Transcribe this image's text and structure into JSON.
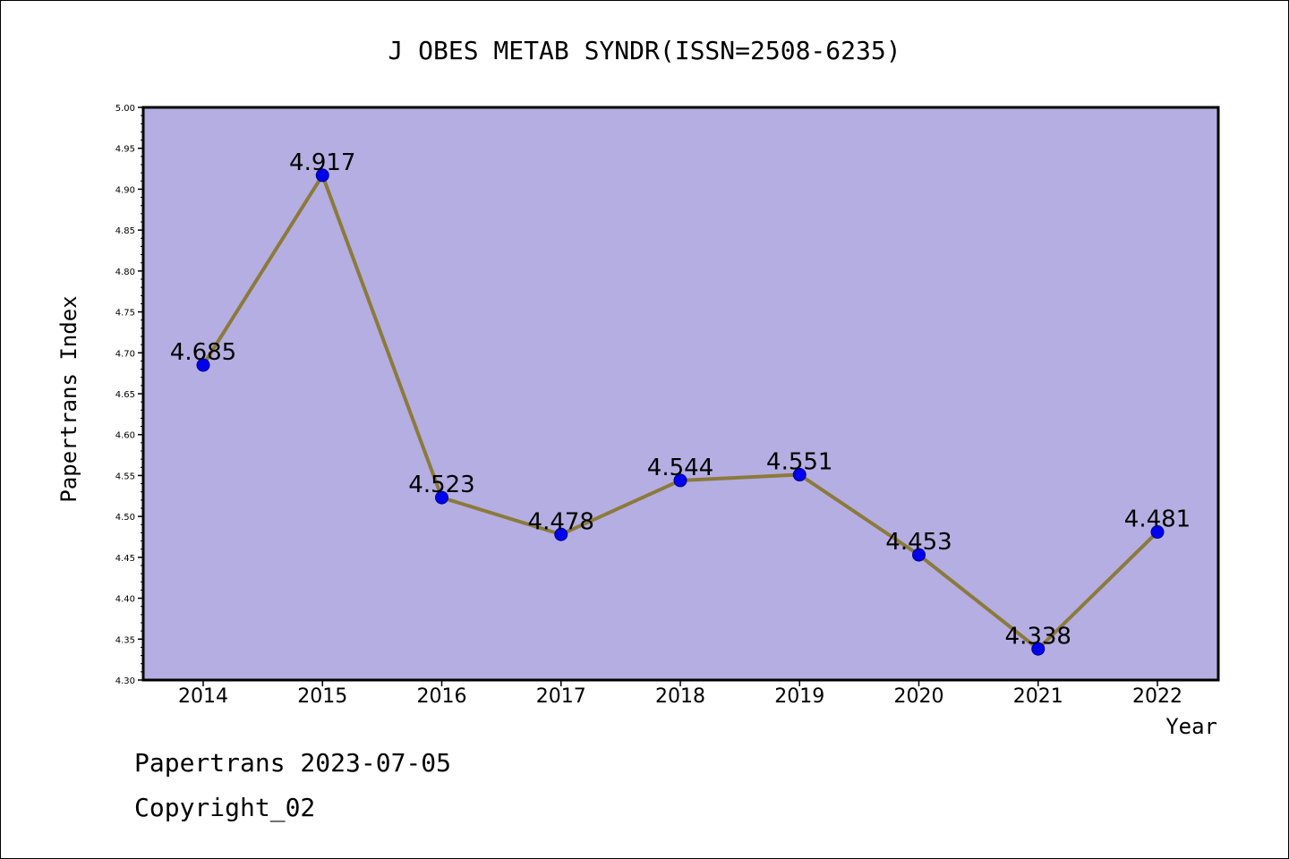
{
  "chart_data": {
    "type": "line",
    "title": "J OBES METAB SYNDR(ISSN=2508-6235)",
    "xlabel": "Year",
    "ylabel": "Papertrans Index",
    "categories": [
      "2014",
      "2015",
      "2016",
      "2017",
      "2018",
      "2019",
      "2020",
      "2021",
      "2022"
    ],
    "values": [
      4.685,
      4.917,
      4.523,
      4.478,
      4.544,
      4.551,
      4.453,
      4.338,
      4.481
    ],
    "data_labels": [
      "4.685",
      "4.917",
      "4.523",
      "4.478",
      "4.544",
      "4.551",
      "4.453",
      "4.338",
      "4.481"
    ],
    "ylim": [
      4.3,
      5.0
    ],
    "yticks": [
      "4.30",
      "4.35",
      "4.40",
      "4.45",
      "4.50",
      "4.55",
      "4.60",
      "4.65",
      "4.70",
      "4.75",
      "4.80",
      "4.85",
      "4.90",
      "4.95",
      "5.00"
    ],
    "grid": false,
    "legend": "none",
    "colors": {
      "plot_background": "#b4aee2",
      "line": "#8b7a3a",
      "marker": "#0000ee"
    }
  },
  "footer": {
    "date_line": "Papertrans 2023-07-05",
    "copyright": "Copyright_02"
  }
}
